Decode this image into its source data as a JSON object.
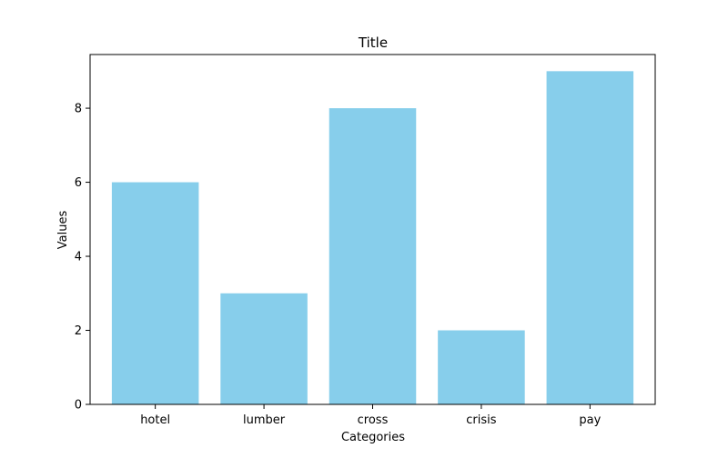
{
  "chart_data": {
    "type": "bar",
    "title": "Title",
    "xlabel": "Categories",
    "ylabel": "Values",
    "categories": [
      "hotel",
      "lumber",
      "cross",
      "crisis",
      "pay"
    ],
    "values": [
      6,
      3,
      8,
      2,
      9
    ],
    "ylim": [
      0,
      9.45
    ],
    "yticks": [
      0,
      2,
      4,
      6,
      8
    ],
    "bar_color": "#87ceeb",
    "grid": false,
    "legend": "none"
  }
}
